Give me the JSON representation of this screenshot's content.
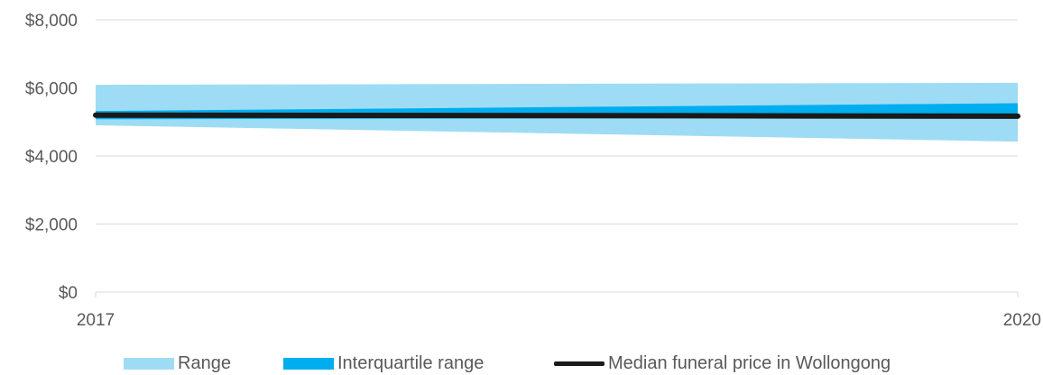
{
  "chart_data": {
    "type": "area",
    "title": "",
    "xlabel": "",
    "ylabel": "",
    "x": [
      "2017",
      "2020"
    ],
    "ylim": [
      0,
      8000
    ],
    "y_ticks": [
      "$0",
      "$2,000",
      "$4,000",
      "$6,000",
      "$8,000"
    ],
    "y_tick_values": [
      0,
      2000,
      4000,
      6000,
      8000
    ],
    "grid": true,
    "legend_position": "bottom",
    "series": [
      {
        "name": "Range",
        "type": "band",
        "lower": [
          4900,
          4420
        ],
        "upper": [
          6090,
          6150
        ],
        "color": "#9edcf5"
      },
      {
        "name": "Interquartile range",
        "type": "band",
        "lower": [
          5080,
          5130
        ],
        "upper": [
          5320,
          5550
        ],
        "color": "#00aeef"
      },
      {
        "name": "Median funeral price in Wollongong",
        "type": "line",
        "values": [
          5200,
          5170
        ],
        "color": "#1a1a1a"
      }
    ]
  },
  "legend": {
    "range": "Range",
    "iqr": "Interquartile range",
    "median": "Median funeral price in Wollongong"
  }
}
